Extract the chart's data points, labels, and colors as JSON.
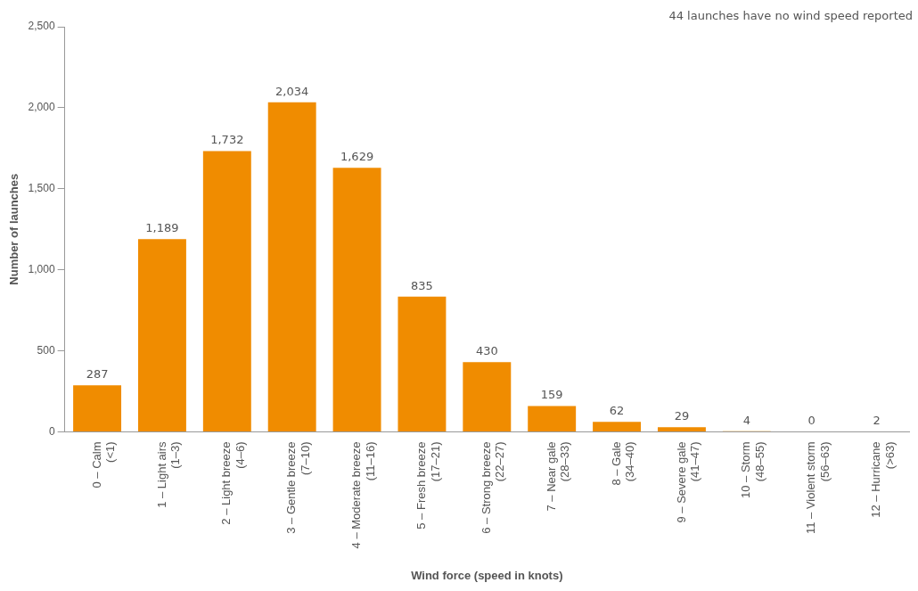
{
  "chart_data": {
    "type": "bar",
    "categories": [
      "0 – Calm\n(<1)",
      "1 – Light airs\n(1–3)",
      "2 – Light breeze\n(4–6)",
      "3 – Gentle breeze\n(7–10)",
      "4 – Moderate breeze\n(11–16)",
      "5 – Fresh breeze\n(17–21)",
      "6 – Strong breeze\n(22–27)",
      "7 – Near gale\n(28–33)",
      "8 – Gale\n(34–40)",
      "9 – Severe gale\n(41–47)",
      "10 – Storm\n(48–55)",
      "11 – Violent storm\n(56–63)",
      "12 – Hurricane\n(>63)"
    ],
    "values": [
      287,
      1189,
      1732,
      2034,
      1629,
      835,
      430,
      159,
      62,
      29,
      4,
      0,
      2
    ],
    "value_labels": [
      "287",
      "1,189",
      "1,732",
      "2,034",
      "1,629",
      "835",
      "430",
      "159",
      "62",
      "29",
      "4",
      "0",
      "2"
    ],
    "color": "#f08c00",
    "xlabel": "Wind force (speed in knots)",
    "ylabel": "Number of launches",
    "ylim": [
      0,
      2500
    ],
    "yticks": [
      0,
      {
        "value": 500,
        "label": "500"
      },
      {
        "value": 1000,
        "label": "1,000"
      },
      {
        "value": 1500,
        "label": "1,500"
      },
      {
        "value": 2000,
        "label": "2,000"
      },
      {
        "value": 2500,
        "label": "2,500"
      }
    ],
    "grid": false,
    "legend": false,
    "annotations": [
      "44 launches have no wind speed reported"
    ]
  }
}
